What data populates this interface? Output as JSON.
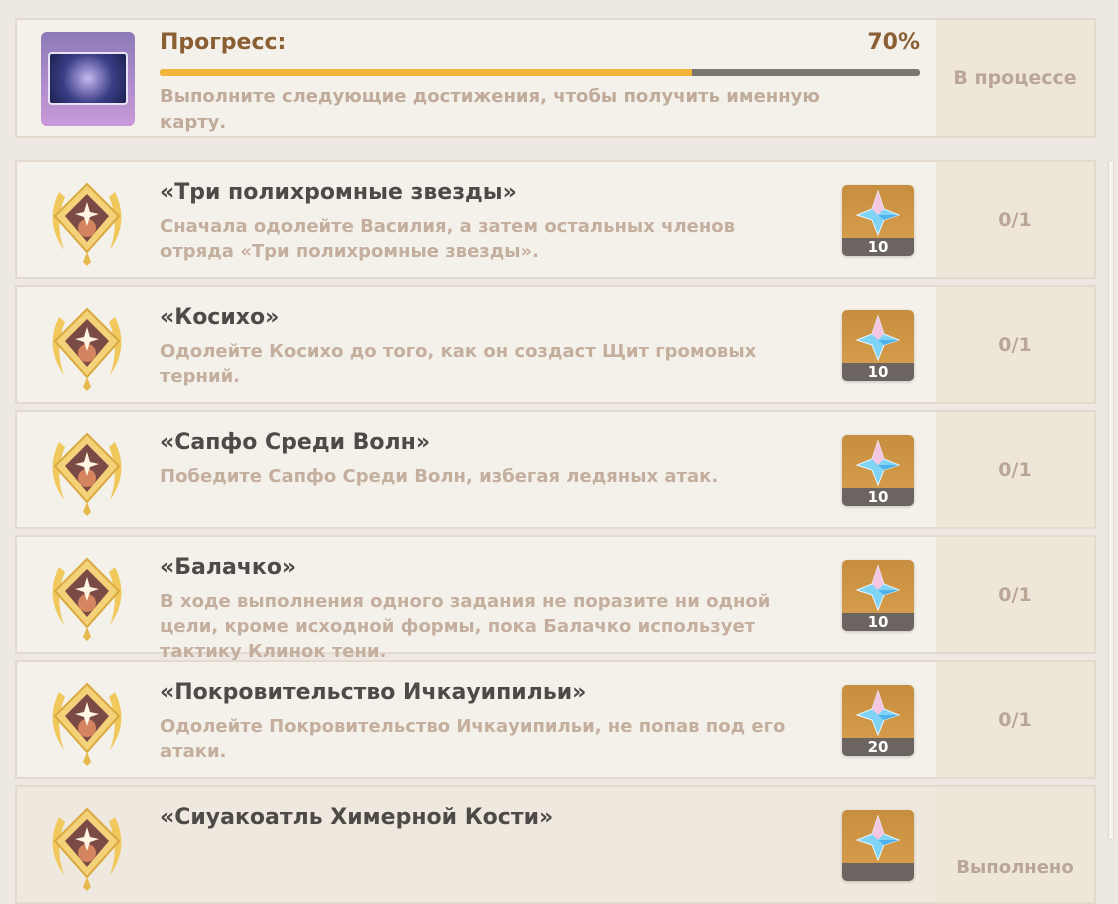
{
  "progress": {
    "title": "Прогресс:",
    "percent_label": "70%",
    "percent": 70,
    "description": "Выполните следующие достижения, чтобы получить именную карту.",
    "status": "В процессе"
  },
  "colors": {
    "accent": "#f2b43a",
    "title": "#8a5f34"
  },
  "achievements": [
    {
      "title": "«Три полихромные звезды»",
      "description": "Сначала одолейте Василия, а затем остальных членов отряда «Три полихромные звезды».",
      "reward": "10",
      "status": "0/1"
    },
    {
      "title": "«Косихо»",
      "description": "Одолейте Косихо до того, как он создаст Щит громовых терний.",
      "reward": "10",
      "status": "0/1"
    },
    {
      "title": "«Сапфо Среди Волн»",
      "description": "Победите Сапфо Среди Волн, избегая ледяных атак.",
      "reward": "10",
      "status": "0/1"
    },
    {
      "title": "«Балачко»",
      "description": "В ходе выполнения одного задания не поразите ни одной цели, кроме исходной формы, пока Балачко использует тактику Клинок тени.",
      "reward": "10",
      "status": "0/1"
    },
    {
      "title": "«Покровительство Ичкауипильи»",
      "description": "Одолейте Покровительство Ичкауипильи, не попав под его атаки.",
      "reward": "20",
      "status": "0/1"
    },
    {
      "title": "«Сиуакоатль Химерной Кости»",
      "description": "",
      "reward": "",
      "status": "Выполнено"
    }
  ]
}
